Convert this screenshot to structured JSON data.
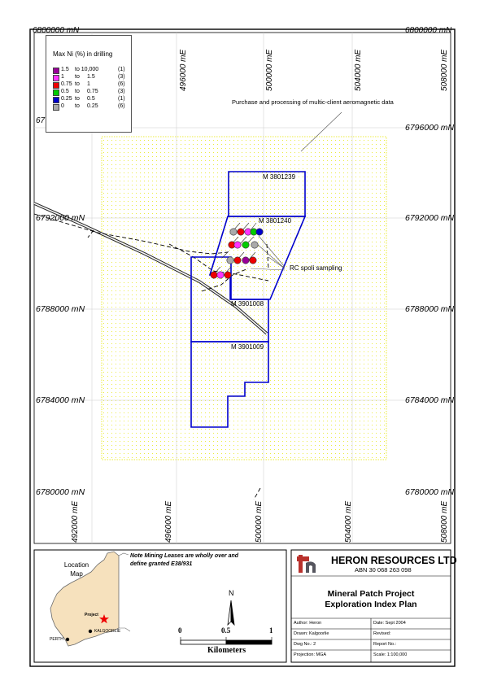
{
  "legend": {
    "title": "Max Ni (%) in drilling",
    "rows": [
      {
        "from": "1.5",
        "to_word": "to 10,000",
        "upper": "",
        "count": "(1)",
        "color": "#990099"
      },
      {
        "from": "1",
        "to_word": "to",
        "upper": "1.5",
        "count": "(3)",
        "color": "#ff33ff"
      },
      {
        "from": "0.75",
        "to_word": "to",
        "upper": "1",
        "count": "(6)",
        "color": "#ee0000"
      },
      {
        "from": "0.5",
        "to_word": "to",
        "upper": "0.75",
        "count": "(3)",
        "color": "#00cc00"
      },
      {
        "from": "0.25",
        "to_word": "to",
        "upper": "0.5",
        "count": "(1)",
        "color": "#0000cc"
      },
      {
        "from": "0",
        "to_word": "to",
        "upper": "0.25",
        "count": "(6)",
        "color": "#aaaaaa"
      }
    ]
  },
  "map": {
    "top_left_corner": "6800000 mN",
    "top_right_corner": "6800000 mN",
    "left_partial": "67",
    "northings": [
      "6796000 mN",
      "6792000 mN",
      "6788000 mN",
      "6784000 mN",
      "6780000 mN"
    ],
    "eastings_top": [
      "496000 mE",
      "500000 mE",
      "504000 mE",
      "508000 mE"
    ],
    "eastings_bottom": [
      "492000 mE",
      "496000 mE",
      "500000 mE",
      "504000 mE",
      "508000 mE"
    ],
    "tenements": [
      "M  3801239",
      "M  3801240",
      "M  3901008",
      "M  3901009"
    ],
    "annotation_aeromag": "Purchase and processing of multic-client aeromagnetic data",
    "annotation_rc": "RC spoli sampling",
    "colors": {
      "tenement": "#0000cc",
      "survey_dots": "#e6e600",
      "road": "#222222"
    }
  },
  "location_map": {
    "title": "Location Map",
    "note": "Note Mining Leases are wholly over and define granted E38/931",
    "project": "Project",
    "kalgoorlie": "KALGOORLIE",
    "perth": "PERTH"
  },
  "scale_bar": {
    "north": "N",
    "ticks": [
      "0",
      "0.5",
      "1"
    ],
    "unit": "Kilometers"
  },
  "title_block": {
    "company": "HERON RESOURCES LTD",
    "abn": "ABN 30 068 263 098",
    "project": "Mineral Patch Project",
    "plan": "Exploration Index Plan",
    "author": "Author: Heron",
    "date": "Date: Sept 2004",
    "drawn": "Drawn: Kalgoorlie",
    "revised": "Revised:",
    "dwg": "Dwg No.: 2",
    "report": "Report No.:",
    "projection": "Projection:  MGA",
    "scale": "Scale: 1:100,000"
  }
}
